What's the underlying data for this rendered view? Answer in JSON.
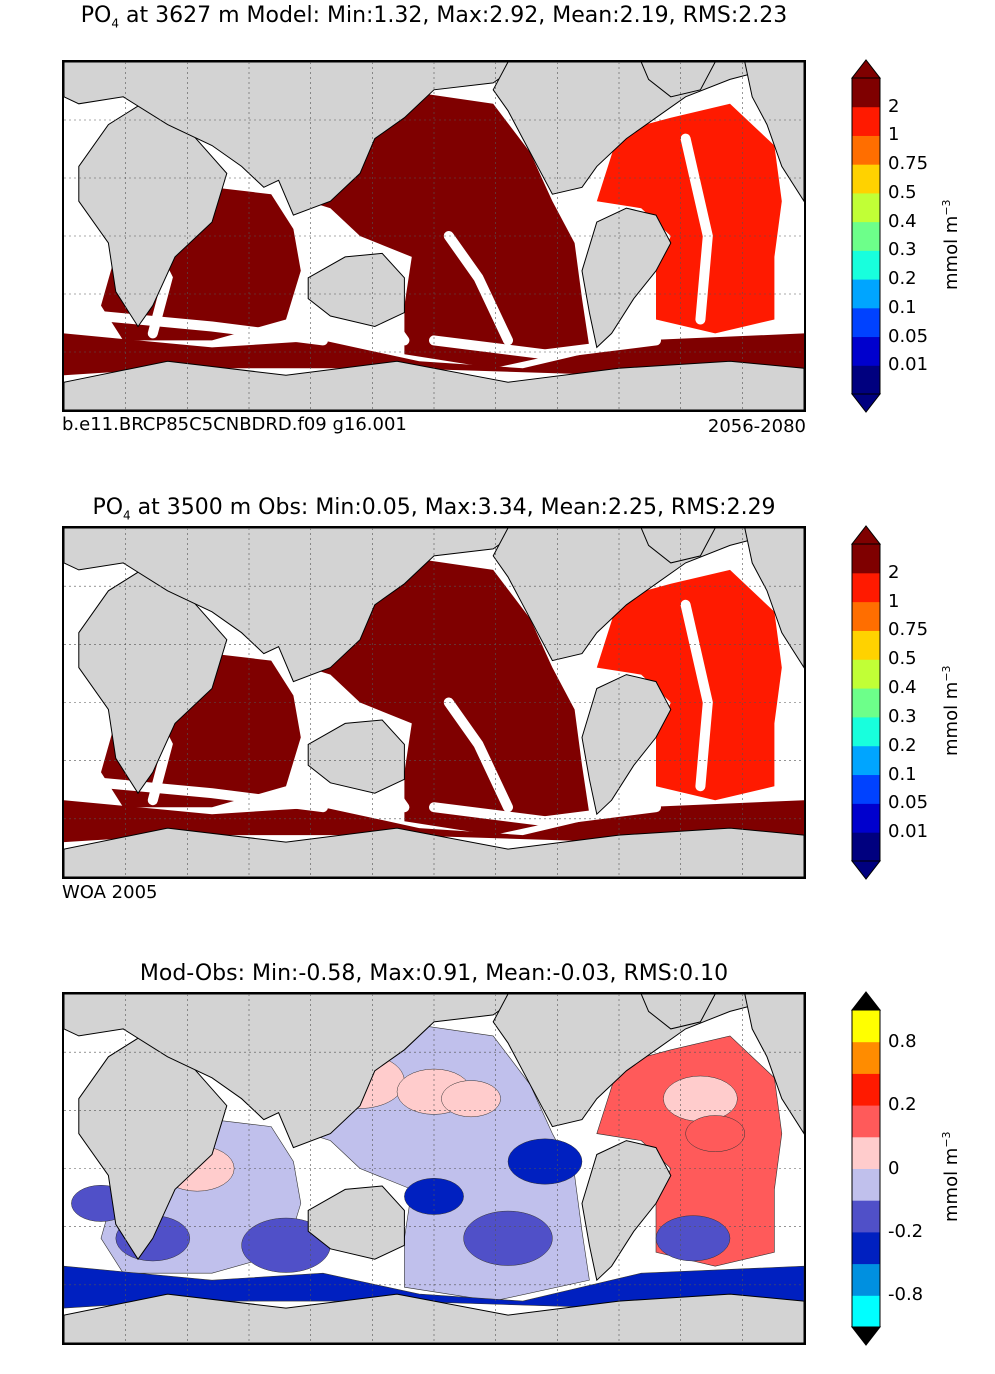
{
  "panels": [
    {
      "title_main": "PO",
      "title_sub": "4",
      "title_rest": "  at 3627 m Model: Min:1.32, Max:2.92, Mean:2.19, RMS:2.23",
      "foot_left": "b.e11.BRCP85C5CNBDRD.f09 g16.001",
      "foot_right": "2056-2080"
    },
    {
      "title_main": "PO",
      "title_sub": "4",
      "title_rest": "  at 3500 m Obs: Min:0.05, Max:3.34, Mean:2.25, RMS:2.29",
      "foot_left": "WOA 2005",
      "foot_right": ""
    },
    {
      "title_main": "Mod-Obs: Min:-0.58, Max:0.91, Mean:-0.03, RMS:0.10",
      "title_sub": "",
      "title_rest": "",
      "foot_left": "",
      "foot_right": ""
    }
  ],
  "colorbars": [
    {
      "unit": "mmol m",
      "unit_sup": "−3",
      "colors": [
        "#00007f",
        "#0000cd",
        "#0042ff",
        "#00a5ff",
        "#18ffdd",
        "#6dff8a",
        "#c1ff36",
        "#ffd200",
        "#ff6e00",
        "#ff1a00",
        "#7f0000"
      ],
      "tick_labels": [
        "0.01",
        "0.05",
        "0.1",
        "0.2",
        "0.3",
        "0.4",
        "0.5",
        "0.75",
        "1",
        "2"
      ],
      "under_color": "#00007f",
      "over_color": "#7f0000"
    },
    {
      "unit": "mmol m",
      "unit_sup": "−3",
      "colors": [
        "#00007f",
        "#0000cd",
        "#0042ff",
        "#00a5ff",
        "#18ffdd",
        "#6dff8a",
        "#c1ff36",
        "#ffd200",
        "#ff6e00",
        "#ff1a00",
        "#7f0000"
      ],
      "tick_labels": [
        "0.01",
        "0.05",
        "0.1",
        "0.2",
        "0.3",
        "0.4",
        "0.5",
        "0.75",
        "1",
        "2"
      ],
      "under_color": "#00007f",
      "over_color": "#7f0000"
    },
    {
      "unit": "mmol m",
      "unit_sup": "−3",
      "colors": [
        "#00ffff",
        "#0090e0",
        "#0020c0",
        "#5050c8",
        "#c0c0ec",
        "#ffcccc",
        "#ff5a5a",
        "#ff1a00",
        "#ff8c00",
        "#ffff00"
      ],
      "tick_labels": [
        "-0.8",
        "",
        "-0.2",
        "",
        "0",
        "",
        "0.2",
        "",
        "0.8"
      ],
      "under_color": "#000000",
      "over_color": "#000000"
    }
  ],
  "colors": {
    "land": "#d3d3d3",
    "ocean_missing": "#ffffff",
    "pacific_model": "#7f0000",
    "atlantic_model": "#ff1a00",
    "grid": "#555555"
  }
}
